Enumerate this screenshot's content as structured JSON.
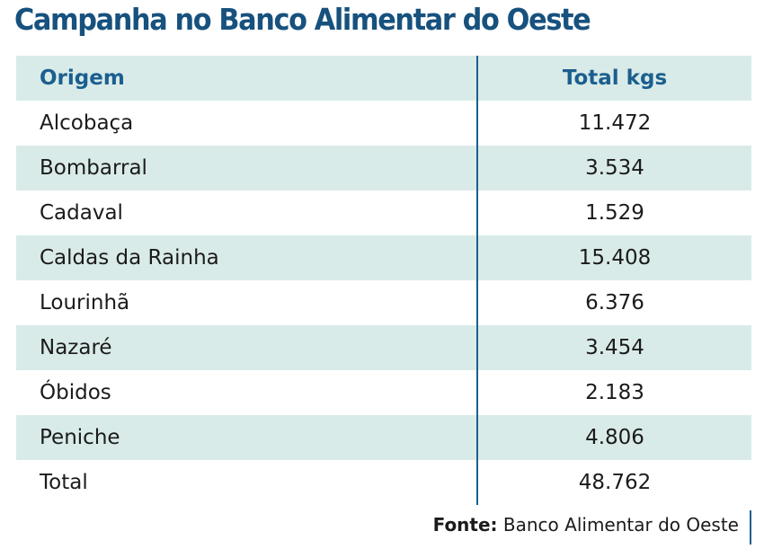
{
  "title": "Campanha no Banco Alimentar do Oeste",
  "table": {
    "header": [
      "Origem",
      "Total kgs"
    ],
    "rows": [
      [
        "Alcobaça",
        "11.472"
      ],
      [
        "Bombarral",
        "3.534"
      ],
      [
        "Cadaval",
        "1.529"
      ],
      [
        "Caldas da Rainha",
        "15.408"
      ],
      [
        "Lourinhã",
        "6.376"
      ],
      [
        "Nazaré",
        "3.454"
      ],
      [
        "Óbidos",
        "2.183"
      ],
      [
        "Peniche",
        "4.806"
      ],
      [
        "Total",
        "48.762"
      ]
    ]
  },
  "source": {
    "label": "Fonte:",
    "text": "Banco Alimentar do Oeste"
  }
}
